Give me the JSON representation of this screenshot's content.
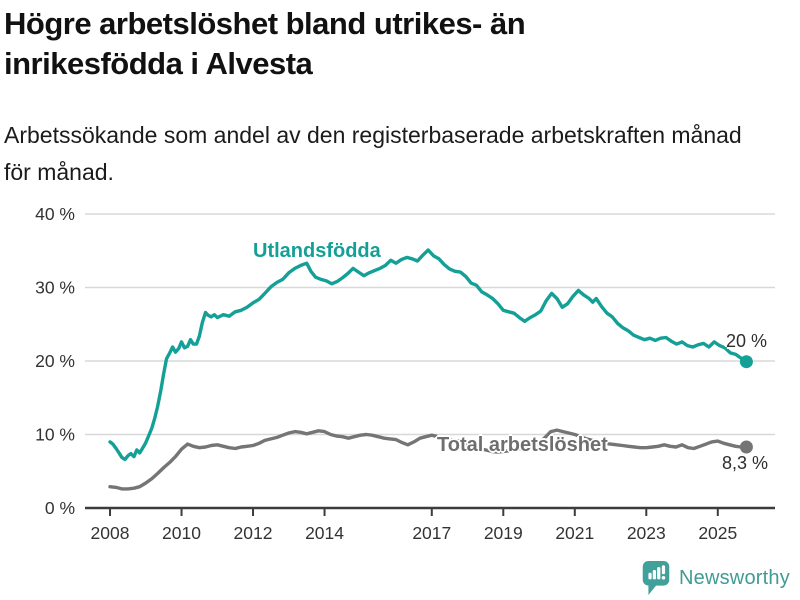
{
  "header": {
    "title": "Högre arbetslöshet bland utrikes- än\ninrikesfödda i Alvesta",
    "subtitle": "Arbetssökande som andel av den registerbaserade arbetskraften månad\nför månad."
  },
  "footer": {
    "brand": "Newsworthy",
    "brand_color": "#3f9b95"
  },
  "chart_data": {
    "type": "line",
    "title": "Högre arbetslöshet bland utrikes- än inrikesfödda i Alvesta",
    "subtitle": "Arbetssökande som andel av den registerbaserade arbetskraften månad för månad.",
    "unit": "%",
    "grid": "horizontal-only",
    "legend_position": "inline-labels",
    "xlim": [
      2007.3,
      2026.6
    ],
    "ylim": [
      0,
      40
    ],
    "yticks": [
      0,
      10,
      20,
      30,
      40
    ],
    "ytick_labels": [
      "0 %",
      "10 %",
      "20 %",
      "30 %",
      "40 %"
    ],
    "xticks": [
      2008,
      2010,
      2012,
      2014,
      2017,
      2019,
      2021,
      2023,
      2025
    ],
    "series": [
      {
        "name": "Utlandsfödda",
        "color": "#14a096",
        "end_label": "20 %",
        "end_value": 20,
        "points": [
          [
            2008.0,
            9.0
          ],
          [
            2008.08,
            8.7
          ],
          [
            2008.17,
            8.1
          ],
          [
            2008.25,
            7.5
          ],
          [
            2008.33,
            6.9
          ],
          [
            2008.42,
            6.6
          ],
          [
            2008.5,
            7.1
          ],
          [
            2008.58,
            7.4
          ],
          [
            2008.67,
            7.0
          ],
          [
            2008.75,
            7.9
          ],
          [
            2008.83,
            7.5
          ],
          [
            2008.92,
            8.2
          ],
          [
            2009.0,
            8.9
          ],
          [
            2009.08,
            9.8
          ],
          [
            2009.17,
            10.9
          ],
          [
            2009.25,
            12.2
          ],
          [
            2009.33,
            13.8
          ],
          [
            2009.42,
            16.0
          ],
          [
            2009.5,
            18.3
          ],
          [
            2009.58,
            20.3
          ],
          [
            2009.67,
            21.1
          ],
          [
            2009.75,
            21.9
          ],
          [
            2009.83,
            21.2
          ],
          [
            2009.92,
            21.7
          ],
          [
            2010.0,
            22.6
          ],
          [
            2010.08,
            21.8
          ],
          [
            2010.17,
            22.0
          ],
          [
            2010.25,
            22.9
          ],
          [
            2010.33,
            22.3
          ],
          [
            2010.42,
            22.3
          ],
          [
            2010.5,
            23.4
          ],
          [
            2010.58,
            25.2
          ],
          [
            2010.67,
            26.6
          ],
          [
            2010.75,
            26.2
          ],
          [
            2010.83,
            26.0
          ],
          [
            2010.92,
            26.3
          ],
          [
            2011.0,
            25.9
          ],
          [
            2011.17,
            26.3
          ],
          [
            2011.33,
            26.1
          ],
          [
            2011.5,
            26.7
          ],
          [
            2011.67,
            26.9
          ],
          [
            2011.83,
            27.3
          ],
          [
            2012.0,
            27.9
          ],
          [
            2012.17,
            28.4
          ],
          [
            2012.33,
            29.2
          ],
          [
            2012.5,
            30.1
          ],
          [
            2012.67,
            30.7
          ],
          [
            2012.83,
            31.1
          ],
          [
            2013.0,
            32.0
          ],
          [
            2013.17,
            32.6
          ],
          [
            2013.33,
            33.0
          ],
          [
            2013.5,
            33.3
          ],
          [
            2013.62,
            32.2
          ],
          [
            2013.75,
            31.4
          ],
          [
            2013.9,
            31.1
          ],
          [
            2014.05,
            30.9
          ],
          [
            2014.2,
            30.5
          ],
          [
            2014.35,
            30.8
          ],
          [
            2014.5,
            31.3
          ],
          [
            2014.65,
            31.9
          ],
          [
            2014.8,
            32.6
          ],
          [
            2014.95,
            32.1
          ],
          [
            2015.1,
            31.6
          ],
          [
            2015.25,
            32.0
          ],
          [
            2015.4,
            32.3
          ],
          [
            2015.55,
            32.6
          ],
          [
            2015.7,
            33.0
          ],
          [
            2015.85,
            33.7
          ],
          [
            2016.0,
            33.3
          ],
          [
            2016.15,
            33.8
          ],
          [
            2016.3,
            34.1
          ],
          [
            2016.45,
            33.9
          ],
          [
            2016.6,
            33.6
          ],
          [
            2016.75,
            34.4
          ],
          [
            2016.9,
            35.1
          ],
          [
            2017.05,
            34.3
          ],
          [
            2017.2,
            33.9
          ],
          [
            2017.35,
            33.1
          ],
          [
            2017.5,
            32.5
          ],
          [
            2017.65,
            32.2
          ],
          [
            2017.8,
            32.1
          ],
          [
            2017.95,
            31.5
          ],
          [
            2018.1,
            30.6
          ],
          [
            2018.25,
            30.3
          ],
          [
            2018.4,
            29.4
          ],
          [
            2018.55,
            29.0
          ],
          [
            2018.7,
            28.5
          ],
          [
            2018.85,
            27.8
          ],
          [
            2019.0,
            26.9
          ],
          [
            2019.15,
            26.7
          ],
          [
            2019.3,
            26.5
          ],
          [
            2019.45,
            25.9
          ],
          [
            2019.6,
            25.4
          ],
          [
            2019.75,
            25.9
          ],
          [
            2019.9,
            26.3
          ],
          [
            2020.05,
            26.8
          ],
          [
            2020.2,
            28.2
          ],
          [
            2020.35,
            29.2
          ],
          [
            2020.5,
            28.5
          ],
          [
            2020.65,
            27.3
          ],
          [
            2020.8,
            27.8
          ],
          [
            2020.95,
            28.8
          ],
          [
            2021.1,
            29.6
          ],
          [
            2021.25,
            29.0
          ],
          [
            2021.4,
            28.5
          ],
          [
            2021.5,
            28.0
          ],
          [
            2021.6,
            28.5
          ],
          [
            2021.75,
            27.4
          ],
          [
            2021.9,
            26.5
          ],
          [
            2022.05,
            26.0
          ],
          [
            2022.2,
            25.1
          ],
          [
            2022.35,
            24.5
          ],
          [
            2022.5,
            24.1
          ],
          [
            2022.65,
            23.5
          ],
          [
            2022.8,
            23.2
          ],
          [
            2022.95,
            22.9
          ],
          [
            2023.1,
            23.1
          ],
          [
            2023.25,
            22.8
          ],
          [
            2023.4,
            23.1
          ],
          [
            2023.55,
            23.2
          ],
          [
            2023.7,
            22.7
          ],
          [
            2023.85,
            22.3
          ],
          [
            2024.0,
            22.6
          ],
          [
            2024.15,
            22.1
          ],
          [
            2024.3,
            21.9
          ],
          [
            2024.45,
            22.2
          ],
          [
            2024.6,
            22.4
          ],
          [
            2024.75,
            21.9
          ],
          [
            2024.9,
            22.6
          ],
          [
            2025.05,
            22.1
          ],
          [
            2025.2,
            21.8
          ],
          [
            2025.35,
            21.1
          ],
          [
            2025.5,
            20.9
          ],
          [
            2025.65,
            20.4
          ],
          [
            2025.8,
            19.9
          ]
        ]
      },
      {
        "name": "Total arbetslöshet",
        "color": "#757575",
        "end_label": "8,3 %",
        "end_value": 8.3,
        "points": [
          [
            2008.0,
            2.9
          ],
          [
            2008.17,
            2.8
          ],
          [
            2008.33,
            2.6
          ],
          [
            2008.5,
            2.6
          ],
          [
            2008.67,
            2.7
          ],
          [
            2008.83,
            2.9
          ],
          [
            2009.0,
            3.4
          ],
          [
            2009.17,
            4.0
          ],
          [
            2009.33,
            4.7
          ],
          [
            2009.5,
            5.5
          ],
          [
            2009.67,
            6.2
          ],
          [
            2009.83,
            7.0
          ],
          [
            2010.0,
            8.0
          ],
          [
            2010.17,
            8.7
          ],
          [
            2010.33,
            8.4
          ],
          [
            2010.5,
            8.2
          ],
          [
            2010.67,
            8.3
          ],
          [
            2010.83,
            8.5
          ],
          [
            2011.0,
            8.6
          ],
          [
            2011.17,
            8.4
          ],
          [
            2011.33,
            8.2
          ],
          [
            2011.5,
            8.1
          ],
          [
            2011.67,
            8.3
          ],
          [
            2011.83,
            8.4
          ],
          [
            2012.0,
            8.5
          ],
          [
            2012.17,
            8.8
          ],
          [
            2012.33,
            9.2
          ],
          [
            2012.5,
            9.4
          ],
          [
            2012.67,
            9.6
          ],
          [
            2012.83,
            9.9
          ],
          [
            2013.0,
            10.2
          ],
          [
            2013.17,
            10.4
          ],
          [
            2013.33,
            10.3
          ],
          [
            2013.5,
            10.1
          ],
          [
            2013.67,
            10.3
          ],
          [
            2013.83,
            10.5
          ],
          [
            2014.0,
            10.4
          ],
          [
            2014.17,
            10.0
          ],
          [
            2014.33,
            9.8
          ],
          [
            2014.5,
            9.7
          ],
          [
            2014.67,
            9.5
          ],
          [
            2014.83,
            9.7
          ],
          [
            2015.0,
            9.9
          ],
          [
            2015.17,
            10.0
          ],
          [
            2015.33,
            9.9
          ],
          [
            2015.5,
            9.7
          ],
          [
            2015.67,
            9.5
          ],
          [
            2015.83,
            9.4
          ],
          [
            2016.0,
            9.3
          ],
          [
            2016.17,
            8.9
          ],
          [
            2016.33,
            8.6
          ],
          [
            2016.5,
            9.0
          ],
          [
            2016.67,
            9.5
          ],
          [
            2016.83,
            9.7
          ],
          [
            2017.0,
            9.9
          ],
          [
            2017.17,
            9.7
          ],
          [
            2017.33,
            9.5
          ],
          [
            2017.5,
            9.3
          ],
          [
            2017.67,
            9.2
          ],
          [
            2017.83,
            9.0
          ],
          [
            2018.0,
            8.7
          ],
          [
            2018.17,
            8.4
          ],
          [
            2018.33,
            8.1
          ],
          [
            2018.5,
            7.9
          ],
          [
            2018.67,
            7.7
          ],
          [
            2018.83,
            7.6
          ],
          [
            2019.0,
            7.7
          ],
          [
            2019.17,
            7.8
          ],
          [
            2019.33,
            8.0
          ],
          [
            2019.5,
            8.1
          ],
          [
            2019.67,
            8.3
          ],
          [
            2019.83,
            8.5
          ],
          [
            2020.0,
            8.8
          ],
          [
            2020.17,
            9.6
          ],
          [
            2020.33,
            10.4
          ],
          [
            2020.5,
            10.6
          ],
          [
            2020.67,
            10.4
          ],
          [
            2020.83,
            10.2
          ],
          [
            2021.0,
            10.0
          ],
          [
            2021.17,
            9.7
          ],
          [
            2021.33,
            9.4
          ],
          [
            2021.5,
            9.2
          ],
          [
            2021.67,
            9.0
          ],
          [
            2021.83,
            8.8
          ],
          [
            2022.0,
            8.7
          ],
          [
            2022.17,
            8.6
          ],
          [
            2022.33,
            8.5
          ],
          [
            2022.5,
            8.4
          ],
          [
            2022.67,
            8.3
          ],
          [
            2022.83,
            8.2
          ],
          [
            2023.0,
            8.2
          ],
          [
            2023.17,
            8.3
          ],
          [
            2023.33,
            8.4
          ],
          [
            2023.5,
            8.6
          ],
          [
            2023.67,
            8.4
          ],
          [
            2023.83,
            8.3
          ],
          [
            2024.0,
            8.6
          ],
          [
            2024.17,
            8.2
          ],
          [
            2024.33,
            8.1
          ],
          [
            2024.5,
            8.4
          ],
          [
            2024.67,
            8.7
          ],
          [
            2024.83,
            9.0
          ],
          [
            2025.0,
            9.1
          ],
          [
            2025.17,
            8.8
          ],
          [
            2025.33,
            8.6
          ],
          [
            2025.5,
            8.4
          ],
          [
            2025.65,
            8.3
          ],
          [
            2025.8,
            8.3
          ]
        ]
      }
    ]
  }
}
